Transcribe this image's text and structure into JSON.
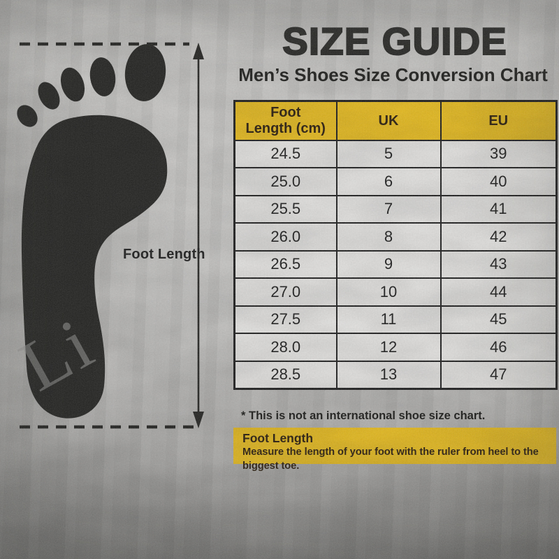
{
  "page": {
    "title": "SIZE GUIDE",
    "subtitle": "Men’s Shoes Size Conversion Chart"
  },
  "diagram": {
    "label": "Foot Length",
    "watermark": "Li",
    "elements": [
      "footprint",
      "top-dashed-line",
      "bottom-dashed-line",
      "double-arrow"
    ]
  },
  "table": {
    "headers": [
      "Foot Length (cm)",
      "UK",
      "EU"
    ],
    "rows": [
      [
        "24.5",
        "5",
        "39"
      ],
      [
        "25.0",
        "6",
        "40"
      ],
      [
        "25.5",
        "7",
        "41"
      ],
      [
        "26.0",
        "8",
        "42"
      ],
      [
        "26.5",
        "9",
        "43"
      ],
      [
        "27.0",
        "10",
        "44"
      ],
      [
        "27.5",
        "11",
        "45"
      ],
      [
        "28.0",
        "12",
        "46"
      ],
      [
        "28.5",
        "13",
        "47"
      ]
    ]
  },
  "footnote": "* This is not an international shoe size chart.",
  "info_box": {
    "title": "Foot Length",
    "description": "Measure the length of your foot with the ruler from heel to the biggest toe."
  },
  "colors": {
    "accent_yellow": "#f5c517",
    "ink": "#1a1a1a",
    "row_paper": "#f2f1ef",
    "background_gray": "#cccbc9"
  }
}
